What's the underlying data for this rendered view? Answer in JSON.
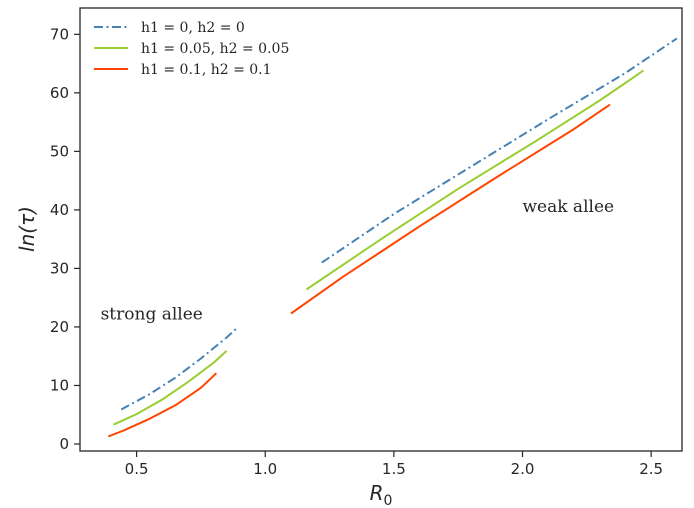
{
  "chart_data": {
    "type": "line",
    "xlabel": "R0",
    "ylabel": "ln(τ)",
    "xlim": [
      0.28,
      2.62
    ],
    "ylim": [
      -1.2,
      74.5
    ],
    "xticks": [
      0.5,
      1.0,
      1.5,
      2.0,
      2.5
    ],
    "xtick_labels": [
      "0.5",
      "1.0",
      "1.5",
      "2.0",
      "2.5"
    ],
    "yticks": [
      0,
      10,
      20,
      30,
      40,
      50,
      60,
      70
    ],
    "ytick_labels": [
      "0",
      "10",
      "20",
      "30",
      "40",
      "50",
      "60",
      "70"
    ],
    "grid": false,
    "legend_position": "top-left",
    "series": [
      {
        "name": "h1 = 0, h2 = 0",
        "color": "#4682b4",
        "dash": "dashdot",
        "segments": [
          [
            [
              0.44,
              5.9
            ],
            [
              0.55,
              8.5
            ],
            [
              0.65,
              11.3
            ],
            [
              0.75,
              14.6
            ],
            [
              0.85,
              18.2
            ],
            [
              0.89,
              19.8
            ]
          ],
          [
            [
              1.22,
              31.0
            ],
            [
              1.5,
              39.3
            ],
            [
              1.8,
              47.4
            ],
            [
              2.1,
              55.5
            ],
            [
              2.4,
              63.4
            ],
            [
              2.6,
              69.3
            ]
          ]
        ]
      },
      {
        "name": "h1 = 0.05, h2 = 0.05",
        "color": "#9acd32",
        "dash": "solid",
        "segments": [
          [
            [
              0.41,
              3.3
            ],
            [
              0.5,
              5.1
            ],
            [
              0.6,
              7.6
            ],
            [
              0.7,
              10.6
            ],
            [
              0.8,
              13.9
            ],
            [
              0.85,
              15.9
            ]
          ],
          [
            [
              1.16,
              26.4
            ],
            [
              1.45,
              35.0
            ],
            [
              1.75,
              43.6
            ],
            [
              2.05,
              51.7
            ],
            [
              2.3,
              58.7
            ],
            [
              2.47,
              63.8
            ]
          ]
        ]
      },
      {
        "name": "h1 = 0.1, h2 = 0.1",
        "color": "#ff4500",
        "dash": "solid",
        "segments": [
          [
            [
              0.39,
              1.3
            ],
            [
              0.45,
              2.3
            ],
            [
              0.55,
              4.3
            ],
            [
              0.65,
              6.6
            ],
            [
              0.75,
              9.6
            ],
            [
              0.81,
              12.1
            ]
          ],
          [
            [
              1.1,
              22.3
            ],
            [
              1.3,
              28.5
            ],
            [
              1.6,
              37.2
            ],
            [
              1.9,
              45.6
            ],
            [
              2.2,
              53.8
            ],
            [
              2.34,
              58.0
            ]
          ]
        ]
      }
    ],
    "annotations": [
      {
        "text": "strong allee",
        "x": 0.36,
        "y": 21.3
      },
      {
        "text": "weak allee",
        "x": 2.0,
        "y": 39.6
      }
    ]
  }
}
